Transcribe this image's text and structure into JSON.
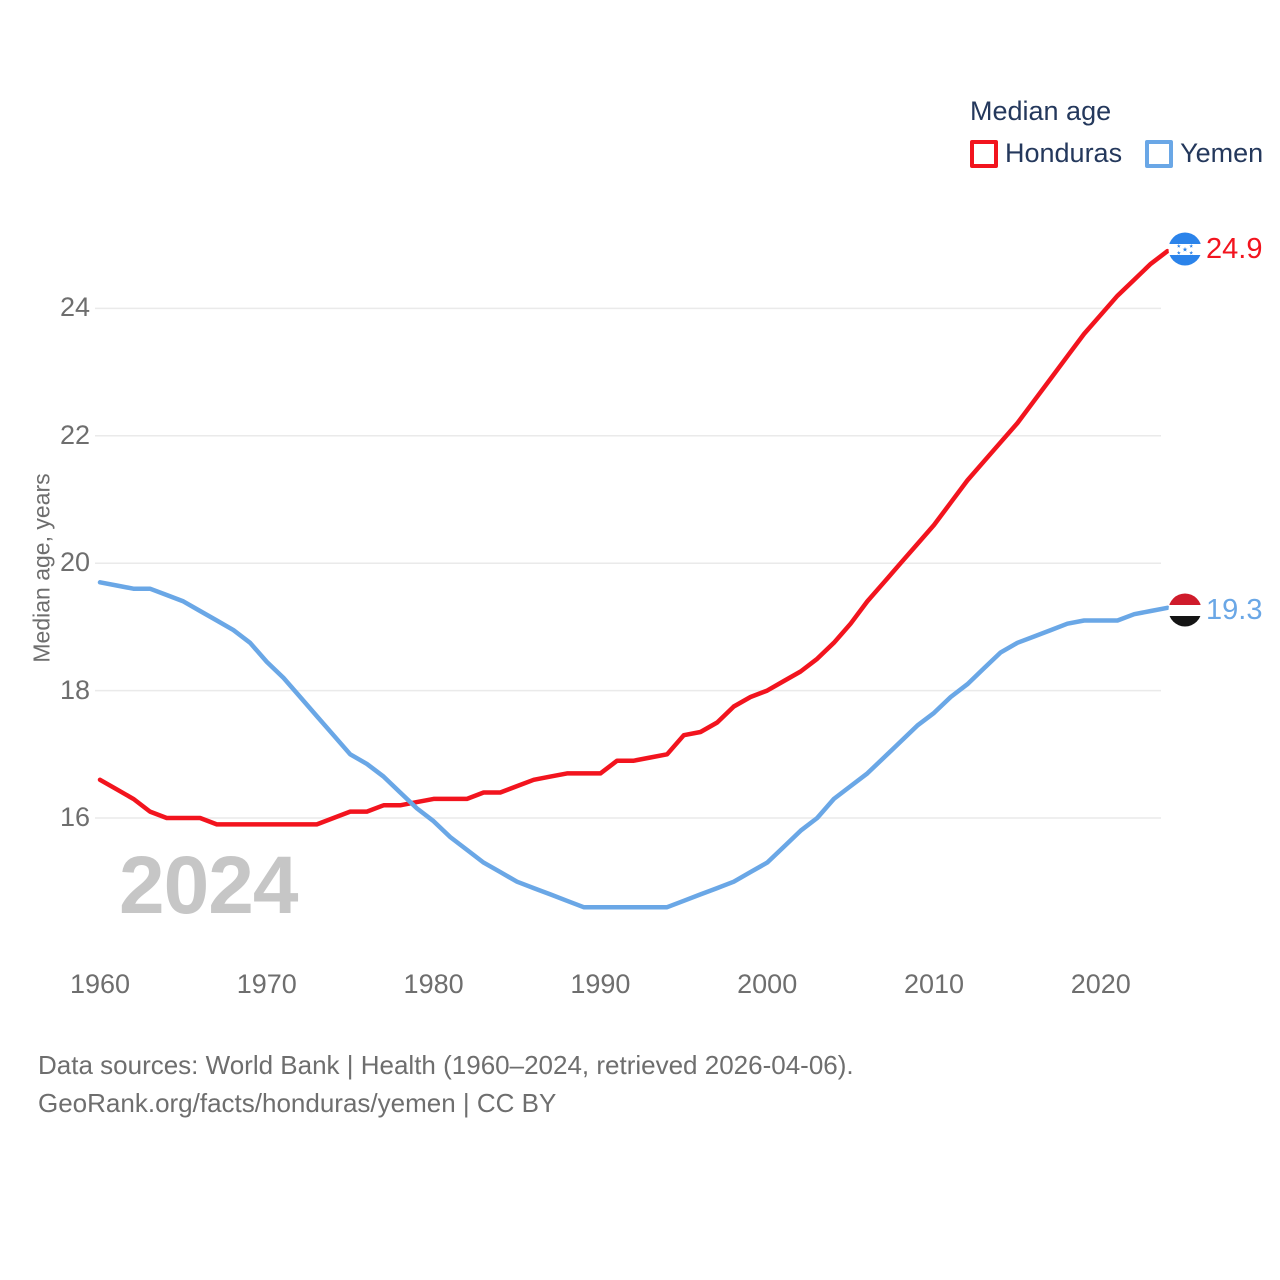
{
  "legend": {
    "title": "Median age"
  },
  "watermark": {
    "text": "2024"
  },
  "y_axis": {
    "title": "Median age, years",
    "ticks": [
      16,
      18,
      20,
      22,
      24
    ]
  },
  "x_axis": {
    "ticks": [
      1960,
      1970,
      1980,
      1990,
      2000,
      2010,
      2020
    ]
  },
  "footer": {
    "line1": "Data sources: World Bank | Health (1960–2024, retrieved 2026-04-06).",
    "line2": "GeoRank.org/facts/honduras/yemen | CC BY"
  },
  "colors": {
    "honduras_red": "#f2141e",
    "yemen_blue": "#6aa7e6",
    "legend_text": "#24385c",
    "tick_text": "#6e6e6e",
    "gridline": "#eaeaea",
    "watermark": "#c6c6c6"
  },
  "chart_data": {
    "type": "line",
    "title": "Median age",
    "ylabel": "Median age, years",
    "x_range": [
      1960,
      2024
    ],
    "ylim": [
      14,
      25.4
    ],
    "yticks": [
      16,
      18,
      20,
      22,
      24
    ],
    "grid": "horizontal",
    "legend_position": "top-right",
    "end_labels": {
      "honduras": "24.9",
      "yemen": "19.3"
    },
    "series": [
      {
        "name": "Honduras",
        "color": "#f2141e",
        "values": [
          16.6,
          16.45,
          16.3,
          16.1,
          16.0,
          16.0,
          16.0,
          15.9,
          15.9,
          15.9,
          15.9,
          15.9,
          15.9,
          15.9,
          16.0,
          16.1,
          16.1,
          16.2,
          16.2,
          16.25,
          16.3,
          16.3,
          16.3,
          16.4,
          16.4,
          16.5,
          16.6,
          16.65,
          16.7,
          16.7,
          16.7,
          16.9,
          16.9,
          16.95,
          17.0,
          17.3,
          17.35,
          17.5,
          17.75,
          17.9,
          18.0,
          18.15,
          18.3,
          18.5,
          18.75,
          19.05,
          19.4,
          19.7,
          20.0,
          20.3,
          20.6,
          20.95,
          21.3,
          21.6,
          21.9,
          22.2,
          22.55,
          22.9,
          23.25,
          23.6,
          23.9,
          24.2,
          24.45,
          24.7,
          24.9
        ]
      },
      {
        "name": "Yemen",
        "color": "#6aa7e6",
        "values": [
          19.7,
          19.65,
          19.6,
          19.6,
          19.5,
          19.4,
          19.25,
          19.1,
          18.95,
          18.75,
          18.45,
          18.2,
          17.9,
          17.6,
          17.3,
          17.0,
          16.85,
          16.65,
          16.4,
          16.15,
          15.95,
          15.7,
          15.5,
          15.3,
          15.15,
          15.0,
          14.9,
          14.8,
          14.7,
          14.6,
          14.6,
          14.6,
          14.6,
          14.6,
          14.6,
          14.7,
          14.8,
          14.9,
          15.0,
          15.15,
          15.3,
          15.55,
          15.8,
          16.0,
          16.3,
          16.5,
          16.7,
          16.95,
          17.2,
          17.45,
          17.65,
          17.9,
          18.1,
          18.35,
          18.6,
          18.75,
          18.85,
          18.95,
          19.05,
          19.1,
          19.1,
          19.1,
          19.2,
          19.25,
          19.3
        ]
      }
    ]
  }
}
